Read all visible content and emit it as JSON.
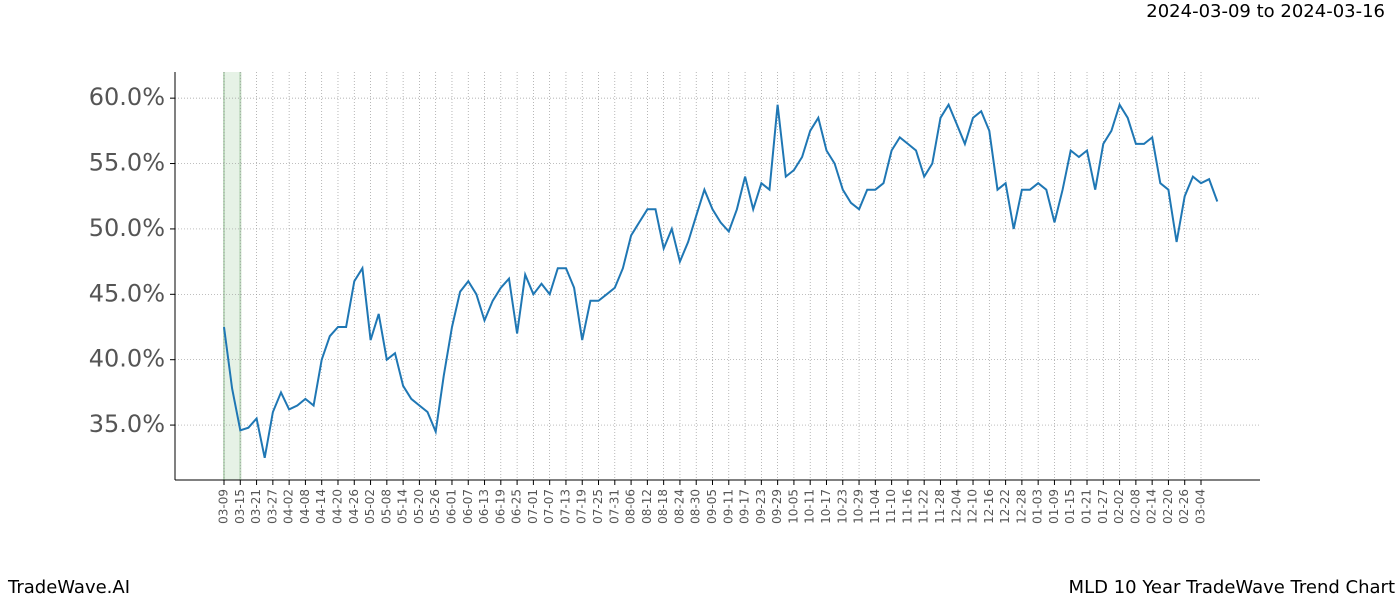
{
  "header": {
    "date_range": "2024-03-09 to 2024-03-16"
  },
  "footer": {
    "brand": "TradeWave.AI",
    "caption": "MLD 10 Year TradeWave Trend Chart"
  },
  "chart_data": {
    "type": "line",
    "categories": [
      "03-09",
      null,
      "03-15",
      null,
      "03-21",
      null,
      "03-27",
      null,
      "04-02",
      null,
      "04-08",
      null,
      "04-14",
      null,
      "04-20",
      null,
      "04-26",
      null,
      "05-02",
      null,
      "05-08",
      null,
      "05-14",
      null,
      "05-20",
      null,
      "05-26",
      null,
      "06-01",
      null,
      "06-07",
      null,
      "06-13",
      null,
      "06-19",
      null,
      "06-25",
      null,
      "07-01",
      null,
      "07-07",
      null,
      "07-13",
      null,
      "07-19",
      null,
      "07-25",
      null,
      "07-31",
      null,
      "08-06",
      null,
      "08-12",
      null,
      "08-18",
      null,
      "08-24",
      null,
      "08-30",
      null,
      "09-05",
      null,
      "09-11",
      null,
      "09-17",
      null,
      "09-23",
      null,
      "09-29",
      null,
      "10-05",
      null,
      "10-11",
      null,
      "10-17",
      null,
      "10-23",
      null,
      "10-29",
      null,
      "11-04",
      null,
      "11-10",
      null,
      "11-16",
      null,
      "11-22",
      null,
      "11-28",
      null,
      "12-04",
      null,
      "12-10",
      null,
      "12-16",
      null,
      "12-22",
      null,
      "12-28",
      null,
      "01-03",
      null,
      "01-09",
      null,
      "01-15",
      null,
      "01-21",
      null,
      "01-27",
      null,
      "02-02",
      null,
      "02-08",
      null,
      "02-14",
      null,
      "02-20",
      null,
      "02-26",
      null,
      "03-04",
      null,
      null
    ],
    "series": [
      {
        "name": "MLD",
        "color": "#1f77b4",
        "values": [
          42.5,
          37.8,
          34.6,
          34.8,
          35.5,
          32.5,
          36,
          37.5,
          36.2,
          36.5,
          37,
          36.5,
          40,
          41.8,
          42.5,
          42.5,
          46,
          47,
          41.5,
          43.5,
          40,
          40.5,
          38,
          37,
          36.5,
          36,
          34.5,
          38.8,
          42.5,
          45.2,
          46,
          45,
          43,
          44.5,
          45.5,
          46.2,
          42,
          46.5,
          45,
          45.8,
          45,
          47,
          47,
          45.5,
          41.5,
          44.5,
          44.5,
          45,
          45.5,
          47,
          49.5,
          50.5,
          51.5,
          51.5,
          48.5,
          50,
          47.5,
          49,
          51,
          53,
          51.5,
          50.5,
          49.8,
          51.5,
          54,
          51.5,
          53.5,
          53,
          59.5,
          54,
          54.5,
          55.5,
          57.5,
          58.5,
          56,
          55,
          53,
          52,
          51.5,
          53,
          53,
          53.5,
          56,
          57,
          56.5,
          56,
          54,
          55,
          58.5,
          59.5,
          58,
          56.5,
          58.5,
          59,
          57.5,
          53,
          53.5,
          50,
          53,
          53,
          53.5,
          53,
          50.5,
          53,
          56,
          55.5,
          56,
          53,
          56.5,
          57.5,
          59.5,
          58.5,
          56.5,
          56.5,
          57,
          53.5,
          53,
          49,
          52.5,
          54,
          53.5,
          53.8,
          52.1
        ]
      }
    ],
    "highlight": {
      "from": "03-09",
      "to": "03-15",
      "color": "#e6f2e6"
    },
    "ylim": [
      30.8,
      62
    ],
    "yticks": [
      {
        "value": 35,
        "label": "35.0%"
      },
      {
        "value": 40,
        "label": "40.0%"
      },
      {
        "value": 45,
        "label": "45.0%"
      },
      {
        "value": 50,
        "label": "50.0%"
      },
      {
        "value": 55,
        "label": "55.0%"
      },
      {
        "value": 60,
        "label": "60.0%"
      }
    ],
    "grid": true
  }
}
